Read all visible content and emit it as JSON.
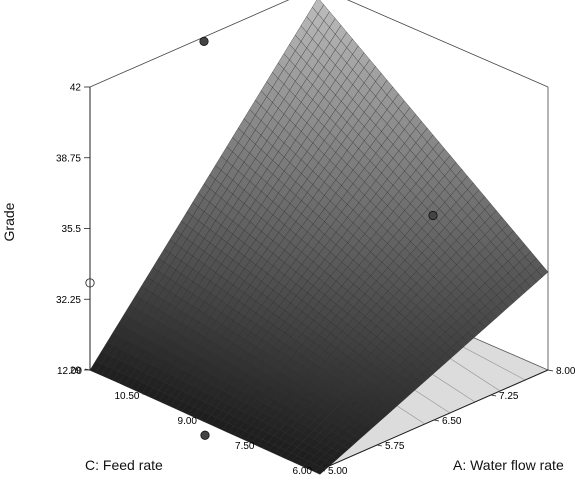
{
  "chart_data": {
    "type": "surface3d",
    "title": "",
    "zlabel": "Grade",
    "xlabel": "A: Water flow rate",
    "ylabel": "C: Feed rate",
    "x_axis": {
      "range": [
        5.0,
        8.0
      ],
      "ticks": [
        "5.00",
        "5.75",
        "6.50",
        "7.25",
        "8.00"
      ]
    },
    "y_axis": {
      "range": [
        6.0,
        12.0
      ],
      "ticks": [
        "6.00",
        "7.50",
        "9.00",
        "10.50",
        "12.00"
      ]
    },
    "z_axis": {
      "range": [
        29,
        42
      ],
      "ticks": [
        "29",
        "32.25",
        "35.5",
        "38.75",
        "42"
      ]
    },
    "surface_corners": [
      {
        "A": 5.0,
        "C": 12.0,
        "grade": 29.0
      },
      {
        "A": 5.0,
        "C": 6.0,
        "grade": 28.8
      },
      {
        "A": 8.0,
        "C": 6.0,
        "grade": 33.5
      },
      {
        "A": 8.0,
        "C": 12.0,
        "grade": 41.5
      }
    ],
    "design_points": [
      {
        "A": 6.5,
        "C": 12.0,
        "grade": 41.8,
        "fill": "#444444"
      },
      {
        "A": 8.0,
        "C": 9.0,
        "grade": 33.8,
        "fill": "#444444"
      },
      {
        "A": 5.0,
        "C": 9.0,
        "grade": 28.3,
        "fill": "#444444"
      },
      {
        "A": 5.0,
        "C": 12.0,
        "grade": 33.0,
        "fill": "#ffffff"
      }
    ],
    "colors": {
      "surface_low": "#1e1e1e",
      "surface_high": "#c4c4c4",
      "floor": "#dcdcdc"
    }
  }
}
